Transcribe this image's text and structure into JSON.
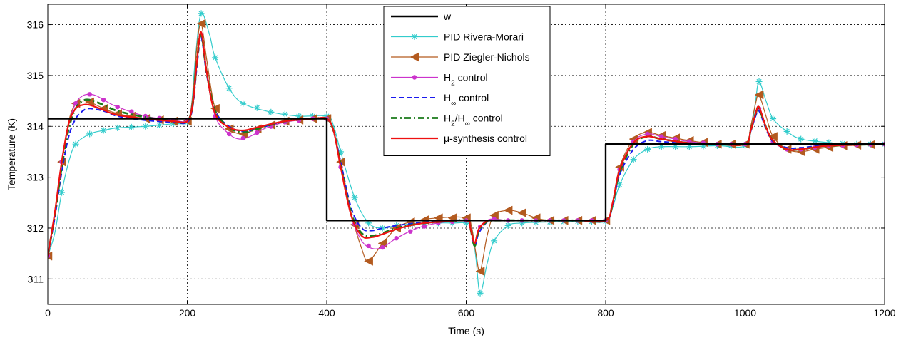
{
  "chart_data": {
    "type": "line",
    "xlabel": "Time (s)",
    "ylabel": "Temperature (K)",
    "xlim": [
      0,
      1200
    ],
    "ylim": [
      310.5,
      316.4
    ],
    "xticks": [
      0,
      200,
      400,
      600,
      800,
      1000,
      1200
    ],
    "yticks": [
      311,
      312,
      313,
      314,
      315,
      316
    ],
    "grid": true,
    "legend_position": "top-center",
    "series": [
      {
        "name": "w",
        "color": "#000000",
        "dash": "solid",
        "width": 2.4,
        "marker": "none",
        "x": [
          0,
          400,
          400,
          800,
          800,
          1200
        ],
        "y": [
          314.15,
          314.15,
          312.15,
          312.15,
          313.65,
          313.65
        ]
      },
      {
        "name": "PID Rivera-Morari",
        "color": "#33cccc",
        "dash": "solid",
        "width": 1.2,
        "marker": "asterisk",
        "marker_every": 1,
        "x": [
          0,
          10,
          20,
          30,
          40,
          60,
          80,
          100,
          140,
          180,
          200,
          206,
          212,
          220,
          232,
          240,
          260,
          280,
          320,
          360,
          400,
          410,
          420,
          440,
          460,
          480,
          500,
          540,
          580,
          600,
          608,
          614,
          620,
          630,
          640,
          660,
          680,
          720,
          760,
          800,
          810,
          820,
          840,
          860,
          880,
          920,
          960,
          1000,
          1010,
          1015,
          1020,
          1030,
          1040,
          1060,
          1080,
          1120,
          1160,
          1200
        ],
        "y": [
          311.45,
          311.9,
          312.7,
          313.3,
          313.65,
          313.85,
          313.92,
          313.97,
          314.0,
          314.05,
          314.08,
          314.4,
          315.4,
          316.22,
          315.8,
          315.35,
          314.75,
          314.45,
          314.28,
          314.2,
          314.2,
          314.0,
          313.5,
          312.6,
          312.1,
          312.0,
          312.05,
          312.1,
          312.1,
          312.1,
          312.0,
          311.4,
          310.72,
          311.3,
          311.75,
          312.05,
          312.1,
          312.12,
          312.13,
          312.13,
          312.4,
          312.85,
          313.35,
          313.55,
          313.6,
          313.6,
          313.62,
          313.62,
          314.05,
          314.5,
          314.88,
          314.5,
          314.15,
          313.9,
          313.75,
          313.68,
          313.65,
          313.65
        ],
        "markers_x": [
          0,
          20,
          40,
          60,
          80,
          100,
          120,
          140,
          160,
          180,
          200,
          220,
          240,
          260,
          280,
          300,
          320,
          340,
          360,
          380,
          400,
          420,
          440,
          460,
          480,
          500,
          520,
          540,
          560,
          580,
          600,
          620,
          640,
          660,
          680,
          700,
          720,
          740,
          760,
          780,
          800,
          820,
          840,
          860,
          880,
          900,
          920,
          940,
          960,
          980,
          1000,
          1020,
          1040,
          1060,
          1080,
          1100,
          1120,
          1140,
          1160,
          1180,
          1200
        ]
      },
      {
        "name": "PID Ziegler-Nichols",
        "color": "#b35a1f",
        "dash": "solid",
        "width": 1.2,
        "marker": "triangle-left",
        "x": [
          0,
          10,
          20,
          30,
          40,
          50,
          60,
          80,
          100,
          140,
          180,
          200,
          208,
          214,
          220,
          228,
          240,
          260,
          280,
          300,
          340,
          380,
          400,
          410,
          420,
          435,
          450,
          460,
          480,
          500,
          520,
          560,
          600,
          608,
          614,
          620,
          630,
          640,
          660,
          680,
          700,
          720,
          760,
          800,
          810,
          820,
          840,
          860,
          880,
          920,
          960,
          1000,
          1008,
          1015,
          1020,
          1030,
          1040,
          1060,
          1080,
          1100,
          1140,
          1200
        ],
        "y": [
          311.45,
          312.3,
          313.3,
          314.1,
          314.45,
          314.5,
          314.48,
          314.35,
          314.25,
          314.15,
          314.1,
          314.1,
          314.6,
          315.6,
          316.02,
          315.3,
          314.35,
          313.95,
          313.85,
          313.95,
          314.1,
          314.15,
          314.15,
          313.9,
          313.3,
          312.3,
          311.6,
          311.35,
          311.7,
          312.0,
          312.12,
          312.2,
          312.2,
          312.0,
          311.5,
          311.15,
          311.85,
          312.25,
          312.35,
          312.3,
          312.2,
          312.15,
          312.15,
          312.15,
          312.5,
          313.2,
          313.75,
          313.88,
          313.82,
          313.72,
          313.65,
          313.65,
          314.0,
          314.45,
          314.62,
          314.2,
          313.8,
          313.55,
          313.5,
          313.55,
          313.62,
          313.65
        ],
        "markers_x": [
          0,
          20,
          40,
          60,
          80,
          100,
          120,
          140,
          160,
          180,
          200,
          220,
          240,
          260,
          280,
          300,
          320,
          340,
          360,
          380,
          400,
          420,
          440,
          460,
          480,
          500,
          520,
          540,
          560,
          580,
          600,
          620,
          640,
          660,
          680,
          700,
          720,
          740,
          760,
          780,
          800,
          820,
          840,
          860,
          880,
          900,
          920,
          940,
          960,
          980,
          1000,
          1020,
          1040,
          1060,
          1080,
          1100,
          1120,
          1140,
          1160,
          1180,
          1200
        ]
      },
      {
        "name": "H2 control",
        "color": "#cc33cc",
        "dash": "solid",
        "width": 1.2,
        "marker": "dot",
        "x": [
          0,
          10,
          20,
          30,
          40,
          50,
          60,
          70,
          80,
          100,
          140,
          180,
          200,
          208,
          214,
          220,
          228,
          240,
          260,
          275,
          290,
          310,
          340,
          380,
          400,
          410,
          420,
          435,
          450,
          465,
          480,
          500,
          530,
          560,
          600,
          606,
          612,
          618,
          630,
          640,
          660,
          700,
          760,
          800,
          810,
          820,
          840,
          860,
          880,
          920,
          960,
          1000,
          1008,
          1015,
          1020,
          1030,
          1040,
          1060,
          1080,
          1120,
          1200
        ],
        "y": [
          311.45,
          312.3,
          313.3,
          314.05,
          314.45,
          314.6,
          314.63,
          314.6,
          314.52,
          314.38,
          314.2,
          314.12,
          314.12,
          314.5,
          315.3,
          315.8,
          315.1,
          314.2,
          313.85,
          313.75,
          313.8,
          313.95,
          314.08,
          314.15,
          314.15,
          313.9,
          313.2,
          312.25,
          311.75,
          311.6,
          311.62,
          311.8,
          312.0,
          312.1,
          312.15,
          312.0,
          311.7,
          312.0,
          312.15,
          312.18,
          312.15,
          312.15,
          312.15,
          312.15,
          312.5,
          313.15,
          313.7,
          313.85,
          313.8,
          313.7,
          313.65,
          313.65,
          313.95,
          314.25,
          314.35,
          314.0,
          313.7,
          313.55,
          313.55,
          313.62,
          313.65
        ],
        "markers_x": [
          0,
          20,
          40,
          60,
          80,
          100,
          120,
          140,
          160,
          180,
          200,
          220,
          240,
          260,
          280,
          300,
          320,
          340,
          360,
          380,
          400,
          420,
          440,
          460,
          480,
          500,
          520,
          540,
          560,
          580,
          600,
          620,
          640,
          660,
          680,
          700,
          720,
          740,
          760,
          780,
          800,
          820,
          840,
          860,
          880,
          900,
          920,
          940,
          960,
          980,
          1000,
          1020,
          1040,
          1060,
          1080,
          1100,
          1120,
          1140,
          1160,
          1180,
          1200
        ]
      },
      {
        "name": "H∞ control",
        "color": "#1a1aee",
        "dash": "dash",
        "width": 2.0,
        "marker": "none",
        "x": [
          0,
          10,
          20,
          30,
          40,
          50,
          60,
          80,
          100,
          140,
          180,
          200,
          208,
          214,
          220,
          228,
          240,
          260,
          280,
          300,
          340,
          380,
          400,
          410,
          420,
          435,
          450,
          465,
          480,
          500,
          530,
          560,
          600,
          606,
          612,
          618,
          630,
          640,
          700,
          760,
          800,
          810,
          820,
          840,
          860,
          880,
          920,
          960,
          1000,
          1008,
          1015,
          1020,
          1030,
          1040,
          1060,
          1080,
          1120,
          1200
        ],
        "y": [
          311.45,
          312.2,
          313.1,
          313.8,
          314.15,
          314.3,
          314.35,
          314.3,
          314.2,
          314.12,
          314.08,
          314.08,
          314.4,
          315.2,
          315.75,
          315.0,
          314.3,
          314.0,
          313.9,
          313.95,
          314.1,
          314.15,
          314.15,
          313.9,
          313.3,
          312.4,
          312.0,
          311.95,
          312.0,
          312.05,
          312.1,
          312.13,
          312.15,
          312.0,
          311.65,
          311.9,
          312.12,
          312.15,
          312.15,
          312.15,
          312.15,
          312.45,
          313.05,
          313.55,
          313.72,
          313.7,
          313.66,
          313.65,
          313.65,
          313.9,
          314.2,
          314.3,
          313.95,
          313.7,
          313.58,
          313.58,
          313.63,
          313.65
        ]
      },
      {
        "name": "H2/H∞ control",
        "color": "#1a7a1a",
        "dash": "dashdot",
        "width": 2.8,
        "marker": "none",
        "x": [
          0,
          10,
          20,
          30,
          40,
          50,
          60,
          80,
          100,
          140,
          180,
          200,
          208,
          214,
          220,
          228,
          240,
          260,
          280,
          300,
          340,
          380,
          400,
          410,
          420,
          435,
          450,
          465,
          480,
          500,
          530,
          560,
          600,
          606,
          612,
          618,
          630,
          640,
          700,
          760,
          800,
          810,
          820,
          840,
          860,
          880,
          920,
          960,
          1000,
          1008,
          1015,
          1020,
          1030,
          1040,
          1060,
          1080,
          1120,
          1200
        ],
        "y": [
          311.45,
          312.25,
          313.2,
          313.95,
          314.35,
          314.5,
          314.52,
          314.42,
          314.3,
          314.18,
          314.1,
          314.1,
          314.45,
          315.3,
          315.82,
          315.05,
          314.3,
          313.98,
          313.88,
          313.95,
          314.1,
          314.15,
          314.15,
          313.9,
          313.25,
          312.3,
          311.9,
          311.85,
          311.9,
          312.0,
          312.08,
          312.12,
          312.15,
          312.0,
          311.65,
          311.95,
          312.13,
          312.15,
          312.15,
          312.15,
          312.15,
          312.48,
          313.1,
          313.65,
          313.8,
          313.75,
          313.67,
          313.65,
          313.65,
          313.92,
          314.25,
          314.35,
          313.98,
          313.72,
          313.55,
          313.55,
          313.62,
          313.65
        ]
      },
      {
        "name": "μ-synthesis control",
        "color": "#ee1111",
        "dash": "solid",
        "width": 2.2,
        "marker": "none",
        "x": [
          0,
          10,
          20,
          30,
          40,
          50,
          60,
          80,
          100,
          140,
          180,
          200,
          208,
          214,
          220,
          228,
          240,
          260,
          280,
          300,
          340,
          380,
          400,
          410,
          420,
          435,
          450,
          465,
          480,
          500,
          530,
          560,
          600,
          606,
          612,
          618,
          630,
          640,
          700,
          760,
          800,
          810,
          820,
          840,
          860,
          880,
          920,
          960,
          1000,
          1008,
          1015,
          1020,
          1030,
          1040,
          1060,
          1080,
          1120,
          1200
        ],
        "y": [
          311.45,
          312.3,
          313.3,
          314.05,
          314.35,
          314.42,
          314.42,
          314.32,
          314.22,
          314.15,
          314.1,
          314.1,
          314.45,
          315.3,
          315.85,
          315.05,
          314.25,
          313.98,
          313.92,
          313.98,
          314.1,
          314.15,
          314.15,
          313.9,
          313.2,
          312.25,
          311.85,
          311.82,
          311.88,
          311.98,
          312.08,
          312.12,
          312.15,
          312.0,
          311.7,
          311.98,
          312.14,
          312.15,
          312.15,
          312.15,
          312.15,
          312.5,
          313.15,
          313.68,
          313.8,
          313.75,
          313.67,
          313.65,
          313.65,
          313.92,
          314.25,
          314.38,
          313.98,
          313.72,
          313.55,
          313.55,
          313.62,
          313.65
        ]
      }
    ]
  }
}
